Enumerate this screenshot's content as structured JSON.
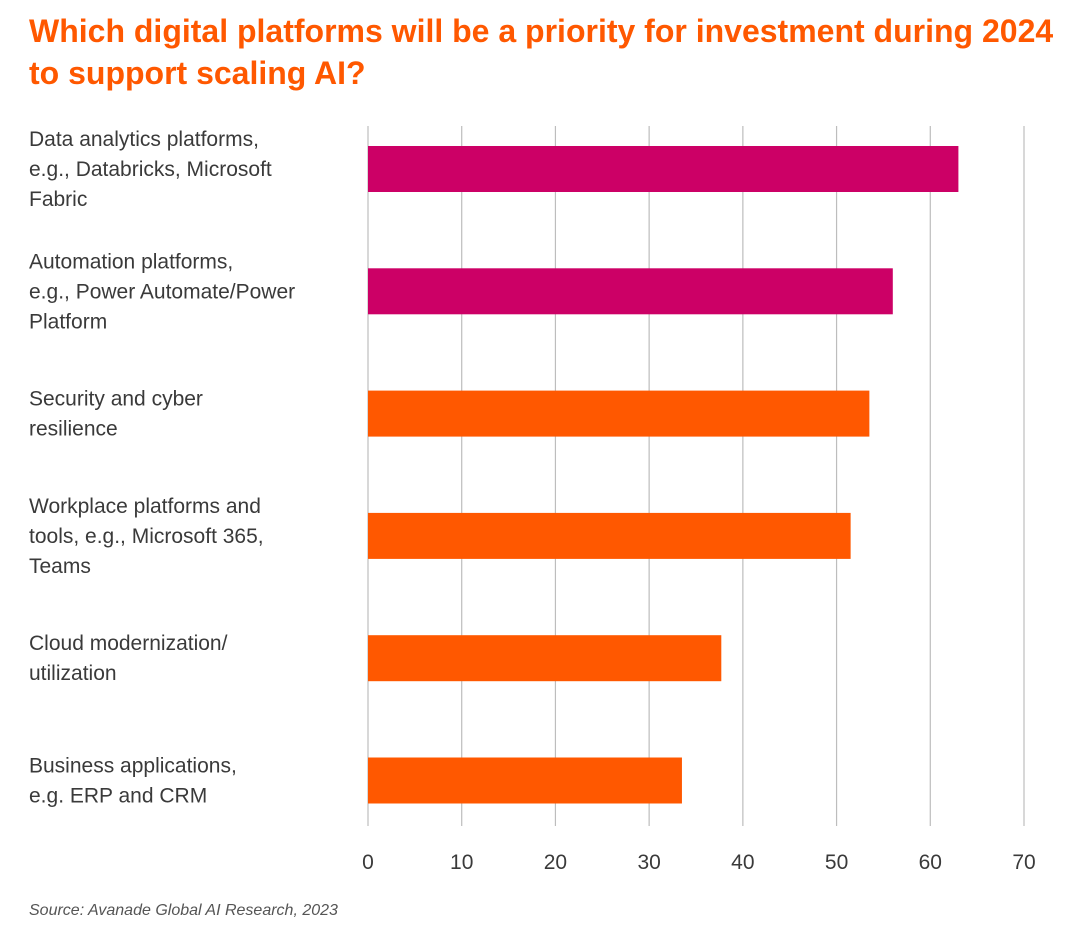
{
  "title": "Which digital platforms will be a priority for investment during 2024 to support scaling AI?",
  "source": "Source: Avanade Global AI Research, 2023",
  "colors": {
    "title": "#ff5800",
    "highlight_bar": "#cc0066",
    "bar": "#ff5800",
    "grid": "#bdbdbd"
  },
  "chart_data": {
    "type": "bar",
    "orientation": "horizontal",
    "categories": [
      [
        "Data analytics platforms,",
        "e.g., Databricks, Microsoft",
        "Fabric"
      ],
      [
        "Automation platforms,",
        "e.g., Power Automate/Power",
        "Platform"
      ],
      [
        "Security and cyber",
        "resilience"
      ],
      [
        "Workplace platforms and",
        "tools, e.g., Microsoft 365,",
        "Teams"
      ],
      [
        "Cloud modernization/",
        "utilization"
      ],
      [
        "Business applications,",
        "e.g. ERP and CRM"
      ]
    ],
    "values": [
      63,
      56,
      53.5,
      51.5,
      37.7,
      33.5
    ],
    "highlighted": [
      true,
      true,
      false,
      false,
      false,
      false
    ],
    "xlim": [
      0,
      70
    ],
    "xticks": [
      0,
      10,
      20,
      30,
      40,
      50,
      60,
      70
    ],
    "xtick_labels": [
      "0",
      "10",
      "20",
      "30",
      "40",
      "50",
      "60",
      "70"
    ],
    "grid": true,
    "legend": null
  }
}
